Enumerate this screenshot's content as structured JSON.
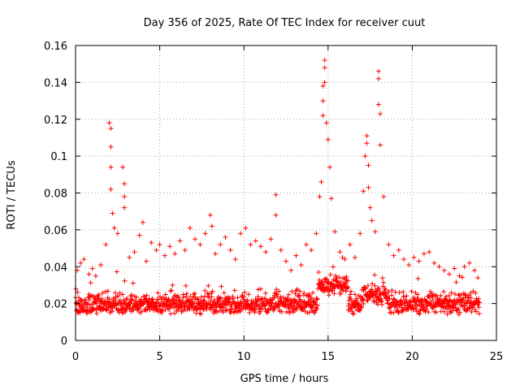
{
  "chart_data": {
    "type": "scatter",
    "title": "Day 356 of 2025, Rate Of TEC Index for receiver cuut",
    "xlabel": "GPS time / hours",
    "ylabel": "ROTI / TECUs",
    "xlim": [
      0,
      25
    ],
    "ylim": [
      0,
      0.16
    ],
    "xticks": [
      0,
      5,
      10,
      15,
      20,
      25
    ],
    "xtick_labels": [
      "0",
      "5",
      "10",
      "15",
      "20",
      "25"
    ],
    "yticks": [
      0,
      0.02,
      0.04,
      0.06,
      0.08,
      0.1,
      0.12,
      0.14,
      0.16
    ],
    "ytick_labels": [
      "0",
      "0.02",
      "0.04",
      "0.06",
      "0.08",
      "0.1",
      "0.12",
      "0.14",
      "0.16"
    ],
    "grid": true,
    "marker": "plus",
    "color": "#ff0000",
    "series": [
      {
        "x": [
          0.1,
          0.3,
          0.5,
          0.8,
          1.0,
          1.2,
          1.5,
          1.8,
          2.0,
          2.1,
          2.1,
          2.1,
          2.1,
          2.2,
          2.3,
          2.5,
          2.8,
          2.9,
          2.9,
          2.9,
          3.2,
          3.5,
          3.8,
          4.0,
          4.2,
          4.5,
          4.8,
          5.0,
          5.3,
          5.6,
          5.9,
          6.2,
          6.5,
          6.8,
          7.1,
          7.4,
          7.7,
          8.0,
          8.1,
          8.3,
          8.6,
          8.9,
          9.2,
          9.5,
          9.8,
          10.1,
          10.4,
          10.7,
          11.0,
          11.3,
          11.6,
          11.9,
          11.9,
          12.2,
          12.5,
          12.8,
          13.1,
          13.4,
          13.7,
          14.0,
          14.3,
          14.5,
          14.6,
          14.7,
          14.7,
          14.7,
          14.8,
          14.8,
          14.8,
          14.9,
          15.0,
          15.1,
          15.2,
          15.4,
          15.7,
          16.0,
          16.3,
          16.6,
          16.9,
          17.1,
          17.2,
          17.3,
          17.3,
          17.4,
          17.4,
          17.5,
          17.6,
          17.8,
          18.0,
          18.0,
          18.0,
          18.1,
          18.1,
          18.3,
          18.6,
          18.9,
          19.2,
          19.5,
          19.8,
          20.1,
          20.4,
          20.7,
          21.0,
          21.3,
          21.6,
          21.9,
          22.2,
          22.5,
          22.8,
          23.1,
          23.4,
          23.7,
          23.9
        ],
        "y": [
          0.038,
          0.042,
          0.044,
          0.036,
          0.039,
          0.035,
          0.041,
          0.052,
          0.118,
          0.115,
          0.105,
          0.094,
          0.082,
          0.069,
          0.061,
          0.058,
          0.094,
          0.085,
          0.078,
          0.072,
          0.045,
          0.048,
          0.057,
          0.064,
          0.043,
          0.053,
          0.049,
          0.052,
          0.046,
          0.051,
          0.047,
          0.054,
          0.049,
          0.061,
          0.055,
          0.052,
          0.058,
          0.068,
          0.062,
          0.047,
          0.052,
          0.056,
          0.049,
          0.044,
          0.058,
          0.061,
          0.052,
          0.054,
          0.051,
          0.048,
          0.055,
          0.079,
          0.068,
          0.049,
          0.043,
          0.038,
          0.046,
          0.041,
          0.052,
          0.049,
          0.058,
          0.078,
          0.086,
          0.122,
          0.13,
          0.138,
          0.152,
          0.148,
          0.14,
          0.118,
          0.109,
          0.094,
          0.077,
          0.059,
          0.048,
          0.044,
          0.052,
          0.045,
          0.058,
          0.081,
          0.1,
          0.111,
          0.107,
          0.095,
          0.083,
          0.072,
          0.065,
          0.059,
          0.146,
          0.142,
          0.128,
          0.123,
          0.106,
          0.078,
          0.052,
          0.046,
          0.049,
          0.044,
          0.041,
          0.045,
          0.043,
          0.047,
          0.048,
          0.042,
          0.04,
          0.038,
          0.036,
          0.039,
          0.035,
          0.04,
          0.042,
          0.038,
          0.034
        ]
      }
    ]
  }
}
